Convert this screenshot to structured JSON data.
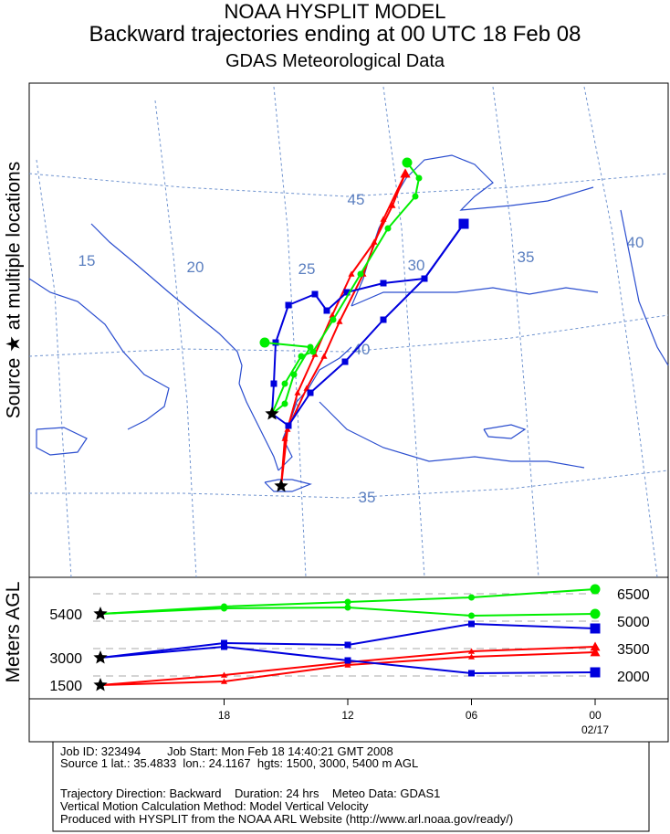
{
  "header": {
    "title": "NOAA HYSPLIT MODEL",
    "subtitle": "Backward trajectories ending at 00 UTC 18 Feb 08",
    "data_source": "GDAS Meteorological Data"
  },
  "side_label": {
    "source_prefix": "Source",
    "source_suffix": "at multiple locations",
    "star_glyph": "★"
  },
  "map": {
    "meridian_labels": [
      "15",
      "20",
      "25",
      "30",
      "35",
      "40"
    ],
    "parallel_labels": [
      "45",
      "40",
      "35"
    ]
  },
  "colors": {
    "red": "#ff0000",
    "blue": "#0000dd",
    "green": "#00ee00",
    "coast": "#2b4ecf",
    "grid": "#6f93cf",
    "grid_label": "#5b7fc0"
  },
  "chart_data": {
    "type": "line",
    "title": "Backward trajectories ending at 00 UTC 18 Feb 08",
    "ylabel": "Meters AGL",
    "x_ticks": [
      "18",
      "12",
      "06",
      "00"
    ],
    "x_date_label": "02/17",
    "y_ticks_left": [
      "5400",
      "3000",
      "1500"
    ],
    "y_ticks_right": [
      "6500",
      "5000",
      "3500",
      "2000"
    ],
    "x_hours_ago": [
      0,
      6,
      12,
      18,
      24
    ],
    "series": [
      {
        "color": "red",
        "marker": "triangle",
        "start_height": 1500,
        "heights": [
          1500,
          1700,
          2600,
          3050,
          3300
        ]
      },
      {
        "color": "red",
        "marker": "triangle",
        "start_height": 1500,
        "heights": [
          1500,
          2050,
          2750,
          3350,
          3600
        ]
      },
      {
        "color": "blue",
        "marker": "square",
        "start_height": 3000,
        "heights": [
          3000,
          3800,
          3700,
          4850,
          4600
        ]
      },
      {
        "color": "blue",
        "marker": "square",
        "start_height": 3000,
        "heights": [
          3000,
          3600,
          2850,
          2150,
          2200
        ]
      },
      {
        "color": "green",
        "marker": "circle",
        "start_height": 5400,
        "heights": [
          5400,
          5800,
          6050,
          6300,
          6750
        ]
      },
      {
        "color": "green",
        "marker": "circle",
        "start_height": 5400,
        "heights": [
          5400,
          5700,
          5750,
          5300,
          5400
        ]
      }
    ]
  },
  "info": {
    "line1": "Job ID: 323494        Job Start: Mon Feb 18 14:40:21 GMT 2008",
    "line2": "Source 1 lat.: 35.4833  lon.: 24.1167  hgts: 1500, 3000, 5400 m AGL",
    "line3": "Trajectory Direction: Backward    Duration: 24 hrs    Meteo Data: GDAS1",
    "line4": "Vertical Motion Calculation Method: Model Vertical Velocity",
    "line5": "Produced with HYSPLIT from the NOAA ARL Website (http://www.arl.noaa.gov/ready/)"
  }
}
